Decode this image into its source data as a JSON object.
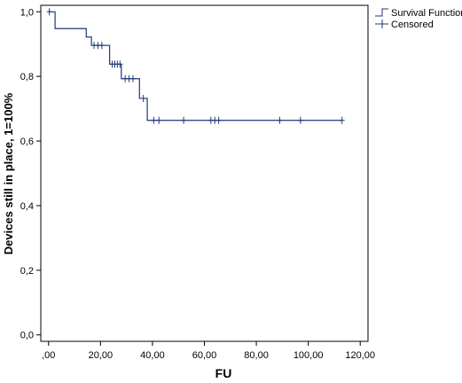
{
  "chart_data": {
    "type": "line",
    "subtype": "kaplan-meier",
    "title": "",
    "xlabel": "FU",
    "ylabel": "Devices still in place, 1=100%",
    "xlim": [
      -3,
      123
    ],
    "ylim": [
      -0.02,
      1.02
    ],
    "x_ticks": [
      0,
      20,
      40,
      60,
      80,
      100,
      120
    ],
    "x_tick_labels": [
      ",00",
      "20,00",
      "40,00",
      "60,00",
      "80,00",
      "100,00",
      "120,00"
    ],
    "y_ticks": [
      0,
      0.2,
      0.4,
      0.6,
      0.8,
      1.0
    ],
    "y_tick_labels": [
      "0,0",
      "0,2",
      "0,4",
      "0,6",
      "0,8",
      "1,0"
    ],
    "grid": false,
    "legend_position": "top-right, outside plot",
    "series": [
      {
        "name": "Survival Function",
        "color": "#1f3a78",
        "steps": [
          {
            "x": 0,
            "y": 1.0
          },
          {
            "x": 2.5,
            "y": 0.948
          },
          {
            "x": 14.5,
            "y": 0.922
          },
          {
            "x": 16.5,
            "y": 0.896
          },
          {
            "x": 23.5,
            "y": 0.838
          },
          {
            "x": 28.0,
            "y": 0.793
          },
          {
            "x": 35.0,
            "y": 0.732
          },
          {
            "x": 38.0,
            "y": 0.664
          },
          {
            "x": 113.0,
            "y": 0.664
          }
        ]
      },
      {
        "name": "Censored",
        "color": "#1f3a78",
        "marker": "+",
        "points": [
          {
            "x": 0.3,
            "y": 1.0
          },
          {
            "x": 17.5,
            "y": 0.896
          },
          {
            "x": 19.0,
            "y": 0.896
          },
          {
            "x": 20.5,
            "y": 0.896
          },
          {
            "x": 24.5,
            "y": 0.838
          },
          {
            "x": 25.5,
            "y": 0.838
          },
          {
            "x": 26.5,
            "y": 0.838
          },
          {
            "x": 27.5,
            "y": 0.838
          },
          {
            "x": 29.5,
            "y": 0.793
          },
          {
            "x": 31.0,
            "y": 0.793
          },
          {
            "x": 32.5,
            "y": 0.793
          },
          {
            "x": 36.5,
            "y": 0.732
          },
          {
            "x": 40.5,
            "y": 0.664
          },
          {
            "x": 42.5,
            "y": 0.664
          },
          {
            "x": 52.0,
            "y": 0.664
          },
          {
            "x": 62.5,
            "y": 0.664
          },
          {
            "x": 64.0,
            "y": 0.664
          },
          {
            "x": 65.5,
            "y": 0.664
          },
          {
            "x": 89.0,
            "y": 0.664
          },
          {
            "x": 97.0,
            "y": 0.664
          },
          {
            "x": 113.0,
            "y": 0.664
          }
        ]
      }
    ]
  }
}
